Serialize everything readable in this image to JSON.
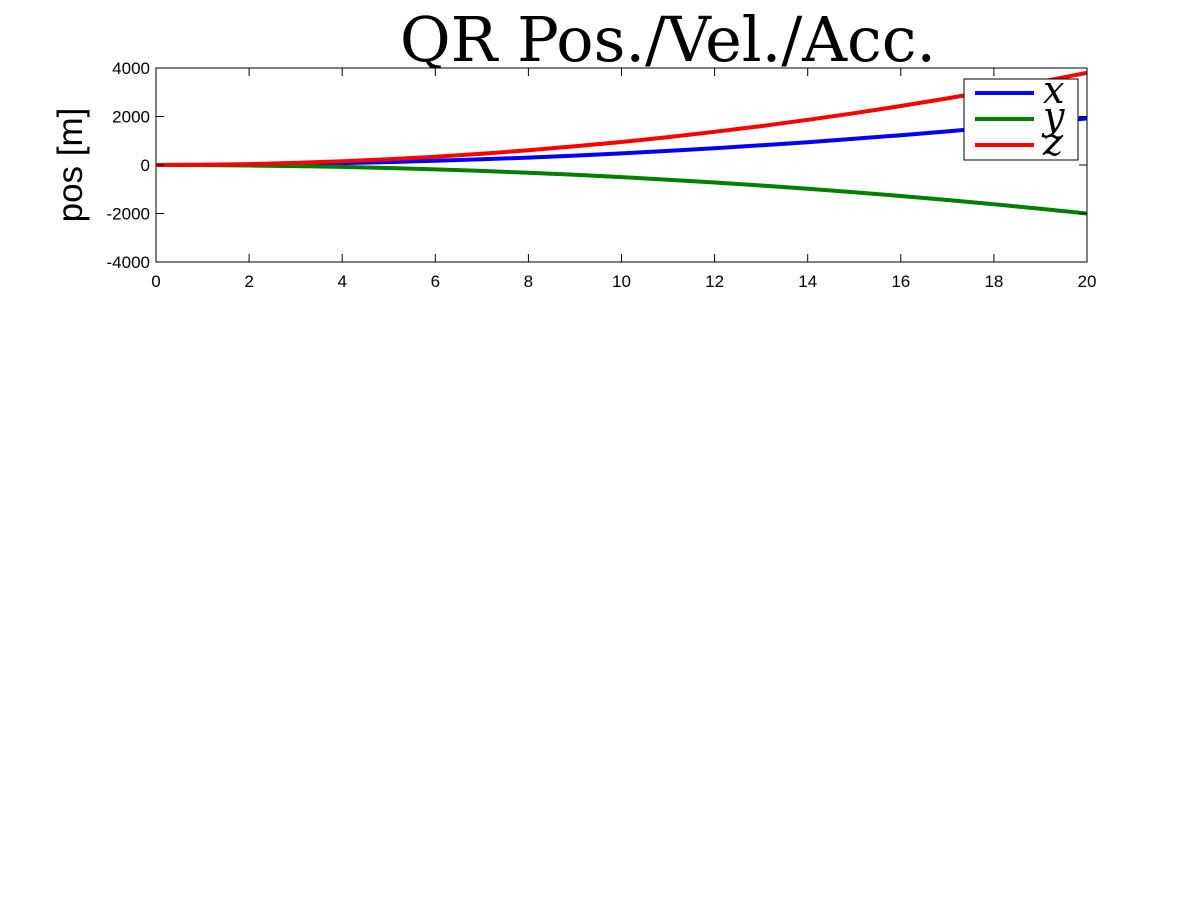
{
  "chart_data": {
    "type": "line",
    "title": "QR Pos./Vel./Acc.",
    "xlabel": "",
    "ylabel": "pos [m]",
    "xlim": [
      0,
      20
    ],
    "ylim": [
      -4000,
      4000
    ],
    "xticks": [
      0,
      2,
      4,
      6,
      8,
      10,
      12,
      14,
      16,
      18,
      20
    ],
    "yticks": [
      -4000,
      -2000,
      0,
      2000,
      4000
    ],
    "grid": false,
    "legend_position": "top-right",
    "x": [
      0,
      1,
      2,
      3,
      4,
      5,
      6,
      7,
      8,
      9,
      10,
      11,
      12,
      13,
      14,
      15,
      16,
      17,
      18,
      19,
      20
    ],
    "series": [
      {
        "name": "x",
        "color": "#0000ff",
        "values": [
          0,
          5,
          19,
          43,
          77,
          120,
          173,
          235,
          307,
          389,
          480,
          581,
          691,
          811,
          941,
          1080,
          1229,
          1387,
          1555,
          1733,
          1920
        ]
      },
      {
        "name": "y",
        "color": "#008000",
        "values": [
          0,
          -5,
          -20,
          -45,
          -80,
          -125,
          -180,
          -245,
          -320,
          -405,
          -500,
          -605,
          -720,
          -845,
          -980,
          -1125,
          -1280,
          -1445,
          -1620,
          -1805,
          -2000
        ]
      },
      {
        "name": "z",
        "color": "#ff0000",
        "values": [
          0,
          10,
          38,
          86,
          152,
          238,
          342,
          466,
          608,
          770,
          950,
          1150,
          1368,
          1606,
          1862,
          2138,
          2432,
          2746,
          3078,
          3430,
          3800
        ]
      }
    ]
  }
}
